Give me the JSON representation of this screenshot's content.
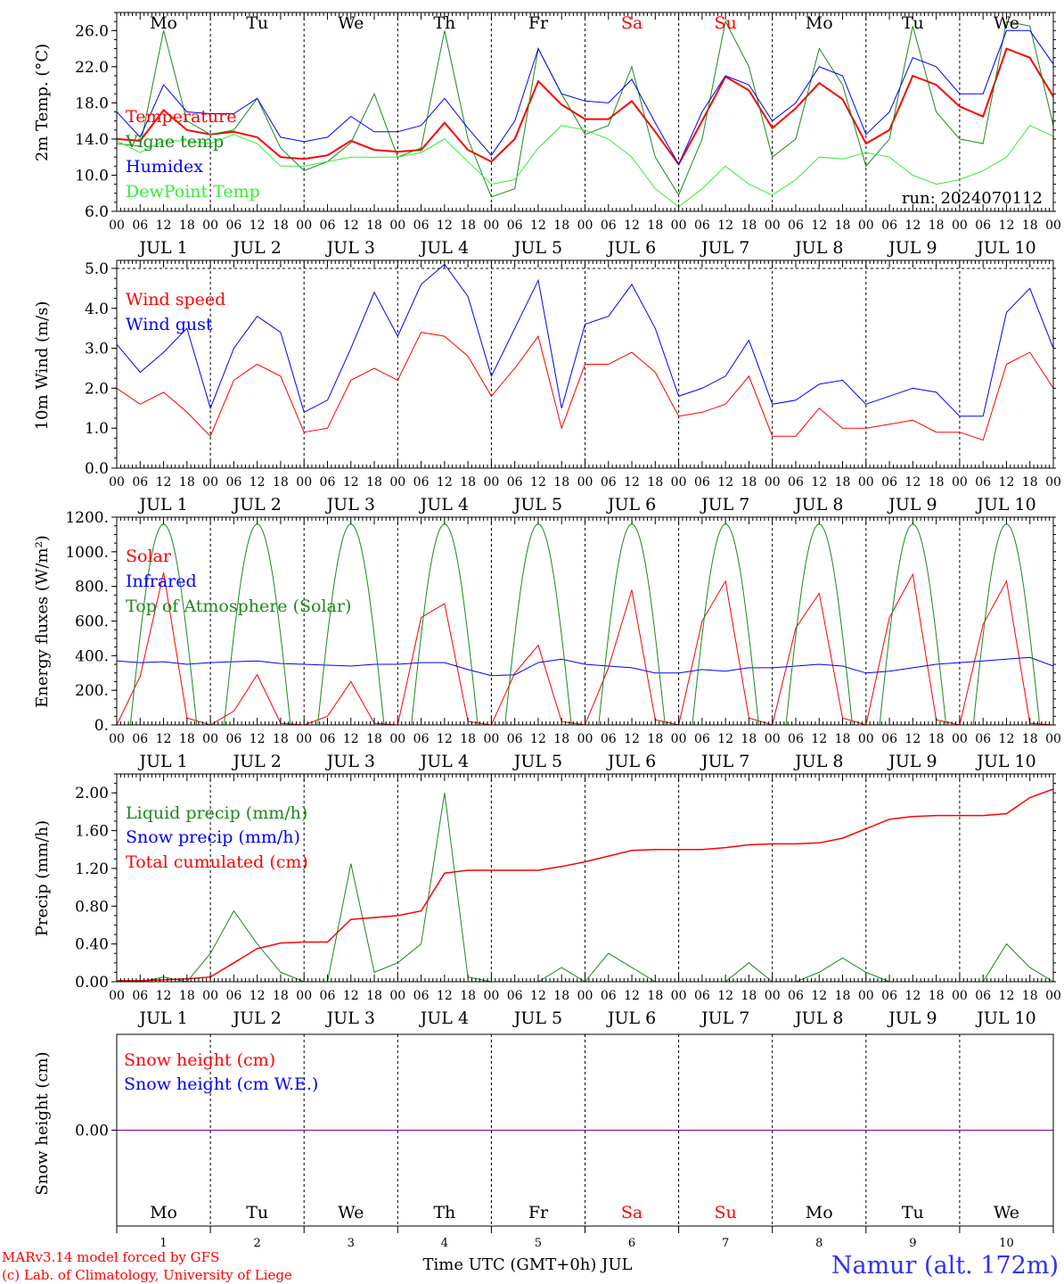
{
  "colors": {
    "red": "#ff0000",
    "green": "#1a8a1a",
    "lightgreen": "#33ee33",
    "blue": "#0000ff",
    "purple": "#8000a0",
    "black": "#000000"
  },
  "days": {
    "names": [
      "Mo",
      "Tu",
      "We",
      "Th",
      "Fr",
      "Sa",
      "Su",
      "Mo",
      "Tu",
      "We"
    ],
    "weekend_index": [
      5,
      6
    ],
    "month_labels": [
      "JUL  1",
      "JUL  2",
      "JUL  3",
      "JUL  4",
      "JUL  5",
      "JUL  6",
      "JUL  7",
      "JUL  8",
      "JUL  9",
      "JUL 10"
    ],
    "day_numbers": [
      "1",
      "2",
      "3",
      "4",
      "5",
      "6",
      "7",
      "8",
      "9",
      "10"
    ],
    "hour_ticks": [
      "00",
      "06",
      "12",
      "18"
    ],
    "end_tick": "00"
  },
  "footer": {
    "model": "MARv3.14 model forced by GFS",
    "copyright": "(c) Lab. of Climatology, University of Liege",
    "xaxis": "Time UTC (GMT+0h) JUL",
    "station": "Namur (alt. 172m)"
  },
  "chart_data": [
    {
      "type": "line",
      "ylabel": "2m Temp. (°C)",
      "ylim": [
        6,
        28
      ],
      "yticks": [
        "6.0",
        "10.0",
        "14.0",
        "18.0",
        "22.0",
        "26.0"
      ],
      "ytick_values": [
        6,
        10,
        14,
        18,
        22,
        26
      ],
      "run_label": "run: 2024070112",
      "x_hours": [
        0,
        6,
        12,
        18,
        24,
        30,
        36,
        42,
        48,
        54,
        60,
        66,
        72,
        78,
        84,
        90,
        96,
        102,
        108,
        114,
        120,
        126,
        132,
        138,
        144,
        150,
        156,
        162,
        168,
        174,
        180,
        186,
        192,
        198,
        204,
        210,
        216,
        222,
        228,
        234,
        240
      ],
      "series": [
        {
          "name": "Temperature",
          "color": "red",
          "values": [
            14,
            13.8,
            17.2,
            15,
            14.5,
            14.8,
            14.2,
            12,
            11.8,
            12.2,
            13.8,
            12.8,
            12.6,
            12.8,
            15.8,
            12.8,
            11.5,
            14,
            20.4,
            17.8,
            16.2,
            16.2,
            18.2,
            14.8,
            11.2,
            16,
            20.9,
            19.4,
            15.2,
            17.4,
            20.2,
            18.4,
            13.5,
            15,
            21,
            20,
            17.6,
            16.5,
            24,
            23,
            18.7
          ]
        },
        {
          "name": "Vigne temp",
          "color": "green",
          "values": [
            13.5,
            13.2,
            26,
            16,
            14.5,
            15,
            18.5,
            13,
            10.5,
            11.5,
            13.6,
            19,
            12,
            13,
            26,
            14,
            7.6,
            8.5,
            24,
            19,
            14.5,
            15.5,
            22,
            12,
            7.8,
            14,
            27,
            22,
            12,
            14,
            24,
            20,
            11,
            14,
            26.5,
            17,
            14,
            13.5,
            27,
            26.5,
            15.5
          ]
        },
        {
          "name": "Humidex",
          "color": "blue",
          "values": [
            17,
            14.2,
            20,
            17,
            16.8,
            16.8,
            18.5,
            14.2,
            13.7,
            14.2,
            16.5,
            14.8,
            14.8,
            15.5,
            18.5,
            15.2,
            12.2,
            16,
            24,
            19,
            18.2,
            18,
            20.6,
            15.8,
            11.2,
            17,
            21,
            20,
            16,
            18,
            22,
            21,
            14.5,
            17,
            23,
            22,
            19,
            19,
            26,
            26,
            22.3
          ]
        },
        {
          "name": "DewPoint Temp",
          "color": "lightgreen",
          "values": [
            13.8,
            12.5,
            13.8,
            13.8,
            13.5,
            14.5,
            13.5,
            11,
            11,
            11.5,
            12,
            12,
            12,
            12.5,
            14,
            11.5,
            9,
            9.5,
            13,
            15.5,
            15,
            14,
            12,
            8.5,
            6.5,
            8.5,
            11,
            9,
            7.8,
            9.5,
            12,
            11.8,
            12.5,
            12,
            10,
            9,
            9.5,
            10.5,
            12,
            15.5,
            14.3
          ]
        }
      ]
    },
    {
      "type": "line",
      "ylabel": "10m Wind (m/s)",
      "ylim": [
        0,
        5.2
      ],
      "yticks": [
        "0.0",
        "1.0",
        "2.0",
        "3.0",
        "4.0",
        "5.0"
      ],
      "ytick_values": [
        0,
        1,
        2,
        3,
        4,
        5
      ],
      "dashed_line": 5,
      "x_hours": [
        0,
        6,
        12,
        18,
        24,
        30,
        36,
        42,
        48,
        54,
        60,
        66,
        72,
        78,
        84,
        90,
        96,
        102,
        108,
        114,
        120,
        126,
        132,
        138,
        144,
        150,
        156,
        162,
        168,
        174,
        180,
        186,
        192,
        198,
        204,
        210,
        216,
        222,
        228,
        234,
        240
      ],
      "series": [
        {
          "name": "Wind speed",
          "color": "red",
          "values": [
            2,
            1.6,
            1.9,
            1.4,
            0.8,
            2.2,
            2.6,
            2.3,
            0.9,
            1,
            2.2,
            2.5,
            2.2,
            3.4,
            3.3,
            2.8,
            1.8,
            2.5,
            3.3,
            1,
            2.6,
            2.6,
            2.9,
            2.4,
            1.3,
            1.4,
            1.6,
            2.3,
            0.8,
            0.8,
            1.5,
            1,
            1,
            1.1,
            1.2,
            0.9,
            0.9,
            0.7,
            2.6,
            2.9,
            2
          ]
        },
        {
          "name": "Wind gust",
          "color": "blue",
          "values": [
            3.1,
            2.4,
            2.9,
            3.5,
            1.5,
            3,
            3.8,
            3.4,
            1.4,
            1.7,
            3,
            4.4,
            3.3,
            4.6,
            5.1,
            4.3,
            2.3,
            3.5,
            4.7,
            1.5,
            3.6,
            3.8,
            4.6,
            3.5,
            1.8,
            2,
            2.3,
            3.2,
            1.6,
            1.7,
            2.1,
            2.2,
            1.6,
            1.8,
            2,
            1.9,
            1.3,
            1.3,
            3.9,
            4.5,
            3
          ]
        }
      ]
    },
    {
      "type": "line",
      "ylabel": "Energy fluxes (W/m²)",
      "ylim": [
        0,
        1200
      ],
      "yticks": [
        "0.",
        "200.",
        "400.",
        "600.",
        "800.",
        "1000.",
        "1200."
      ],
      "ytick_values": [
        0,
        200,
        400,
        600,
        800,
        1000,
        1200
      ],
      "x_hours": [
        0,
        6,
        12,
        18,
        24,
        30,
        36,
        42,
        48,
        54,
        60,
        66,
        72,
        78,
        84,
        90,
        96,
        102,
        108,
        114,
        120,
        126,
        132,
        138,
        144,
        150,
        156,
        162,
        168,
        174,
        180,
        186,
        192,
        198,
        204,
        210,
        216,
        222,
        228,
        234,
        240
      ],
      "series": [
        {
          "name": "Solar",
          "color": "red",
          "values": [
            0,
            280,
            880,
            40,
            0,
            80,
            290,
            10,
            0,
            50,
            250,
            10,
            0,
            620,
            700,
            20,
            0,
            300,
            460,
            20,
            0,
            330,
            780,
            30,
            0,
            600,
            830,
            40,
            0,
            560,
            760,
            40,
            0,
            620,
            870,
            30,
            0,
            580,
            830,
            10,
            0
          ]
        },
        {
          "name": "Infrared",
          "color": "blue",
          "values": [
            370,
            360,
            365,
            350,
            360,
            365,
            370,
            355,
            350,
            345,
            340,
            350,
            350,
            360,
            360,
            320,
            285,
            290,
            360,
            380,
            350,
            340,
            330,
            300,
            300,
            320,
            310,
            330,
            330,
            340,
            350,
            340,
            300,
            310,
            330,
            350,
            360,
            370,
            380,
            390,
            340
          ]
        },
        {
          "name": "Top of Atmosphere (Solar)",
          "color": "green",
          "peak": 1160
        }
      ]
    },
    {
      "type": "line",
      "ylabel": "Precip (mm/h)",
      "ylim": [
        0,
        2.2
      ],
      "yticks": [
        "0.00",
        "0.40",
        "0.80",
        "1.20",
        "1.60",
        "2.00"
      ],
      "ytick_values": [
        0,
        0.4,
        0.8,
        1.2,
        1.6,
        2.0
      ],
      "x_hours": [
        0,
        6,
        12,
        18,
        24,
        30,
        36,
        42,
        48,
        54,
        60,
        66,
        72,
        78,
        84,
        90,
        96,
        102,
        108,
        114,
        120,
        126,
        132,
        138,
        144,
        150,
        156,
        162,
        168,
        174,
        180,
        186,
        192,
        198,
        204,
        210,
        216,
        222,
        228,
        234,
        240
      ],
      "series": [
        {
          "name": "Liquid precip (mm/h)",
          "color": "green",
          "values": [
            0,
            0,
            0.05,
            0,
            0.3,
            0.75,
            0.4,
            0.1,
            0,
            0,
            1.25,
            0.1,
            0.2,
            0.4,
            2,
            0.05,
            0,
            0,
            0,
            0.15,
            0,
            0.3,
            0.15,
            0,
            0,
            0,
            0,
            0.2,
            0,
            0,
            0.1,
            0.25,
            0.1,
            0,
            0,
            0,
            0,
            0,
            0.4,
            0.15,
            0
          ]
        },
        {
          "name": "Snow precip (mm/h)",
          "color": "blue",
          "values": [
            0,
            0,
            0,
            0,
            0,
            0,
            0,
            0,
            0,
            0,
            0,
            0,
            0,
            0,
            0,
            0,
            0,
            0,
            0,
            0,
            0,
            0,
            0,
            0,
            0,
            0,
            0,
            0,
            0,
            0,
            0,
            0,
            0,
            0,
            0,
            0,
            0,
            0,
            0,
            0,
            0
          ]
        },
        {
          "name": "Total cumulated (cm)",
          "color": "red",
          "values": [
            0.01,
            0.01,
            0.02,
            0.03,
            0.05,
            0.2,
            0.35,
            0.41,
            0.42,
            0.42,
            0.66,
            0.68,
            0.7,
            0.75,
            1.15,
            1.18,
            1.18,
            1.18,
            1.18,
            1.22,
            1.27,
            1.33,
            1.39,
            1.4,
            1.4,
            1.4,
            1.42,
            1.45,
            1.46,
            1.46,
            1.47,
            1.52,
            1.62,
            1.72,
            1.75,
            1.76,
            1.76,
            1.76,
            1.78,
            1.95,
            2.04
          ]
        }
      ]
    },
    {
      "type": "line",
      "ylabel": "Snow height (cm)",
      "ylim": [
        -1,
        1
      ],
      "yticks": [
        "0.00"
      ],
      "ytick_values": [
        0
      ],
      "x_hours": [
        0,
        240
      ],
      "series": [
        {
          "name": "Snow height (cm)",
          "color": "red",
          "values": [
            0,
            0
          ]
        },
        {
          "name": "Snow height (cm W.E.)",
          "color": "blue",
          "values": [
            0,
            0
          ]
        }
      ]
    }
  ]
}
